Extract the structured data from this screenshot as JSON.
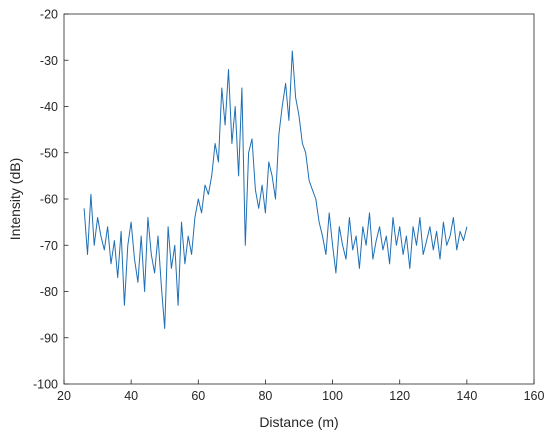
{
  "chart_data": {
    "type": "line",
    "title": "",
    "xlabel": "Distance (m)",
    "ylabel": "Intensity (dB)",
    "xlim": [
      20,
      160
    ],
    "ylim": [
      -100,
      -20
    ],
    "xticks": [
      20,
      40,
      60,
      80,
      100,
      120,
      140,
      160
    ],
    "yticks": [
      -100,
      -90,
      -80,
      -70,
      -60,
      -50,
      -40,
      -30,
      -20
    ],
    "xtick_labels": [
      "20",
      "40",
      "60",
      "80",
      "100",
      "120",
      "140",
      "160"
    ],
    "ytick_labels": [
      "-100",
      "-90",
      "-80",
      "-70",
      "-60",
      "-50",
      "-40",
      "-30",
      "-20"
    ],
    "grid": false,
    "line_color": "#1f6fb4",
    "series": [
      {
        "x": [
          26,
          27,
          28,
          29,
          30,
          31,
          32,
          33,
          34,
          35,
          36,
          37,
          38,
          39,
          40,
          41,
          42,
          43,
          44,
          45,
          46,
          47,
          48,
          49,
          50,
          51,
          52,
          53,
          54,
          55,
          56,
          57,
          58,
          59,
          60,
          61,
          62,
          63,
          64,
          65,
          66,
          67,
          68,
          69,
          70,
          71,
          72,
          73,
          74,
          75,
          76,
          77,
          78,
          79,
          80,
          81,
          82,
          83,
          84,
          85,
          86,
          87,
          88,
          89,
          90,
          91,
          92,
          93,
          94,
          95,
          96,
          97,
          98,
          99,
          100,
          101,
          102,
          103,
          104,
          105,
          106,
          107,
          108,
          109,
          110,
          111,
          112,
          113,
          114,
          115,
          116,
          117,
          118,
          119,
          120,
          121,
          122,
          123,
          124,
          125,
          126,
          127,
          128,
          129,
          130,
          131,
          132,
          133,
          134,
          135,
          136,
          137,
          138,
          139,
          140
        ],
        "y": [
          -62,
          -72,
          -59,
          -70,
          -64,
          -68,
          -71,
          -66,
          -74,
          -69,
          -77,
          -67,
          -83,
          -70,
          -65,
          -73,
          -78,
          -68,
          -80,
          -64,
          -72,
          -76,
          -68,
          -79,
          -88,
          -66,
          -75,
          -70,
          -83,
          -65,
          -74,
          -68,
          -72,
          -64,
          -60,
          -63,
          -57,
          -59,
          -55,
          -48,
          -52,
          -36,
          -44,
          -32,
          -48,
          -40,
          -55,
          -36,
          -70,
          -50,
          -47,
          -58,
          -62,
          -57,
          -63,
          -52,
          -55,
          -60,
          -46,
          -40,
          -35,
          -43,
          -28,
          -38,
          -42,
          -48,
          -50,
          -56,
          -58,
          -60,
          -65,
          -68,
          -72,
          -63,
          -70,
          -76,
          -66,
          -70,
          -73,
          -64,
          -71,
          -68,
          -75,
          -66,
          -70,
          -63,
          -73,
          -69,
          -66,
          -71,
          -68,
          -74,
          -64,
          -70,
          -66,
          -72,
          -68,
          -75,
          -66,
          -70,
          -64,
          -72,
          -69,
          -66,
          -71,
          -67,
          -73,
          -65,
          -70,
          -68,
          -64,
          -71,
          -67,
          -69,
          -66
        ]
      }
    ],
    "annotations": [
      {
        "x": 84,
        "y": -25,
        "label": ""
      },
      {
        "x": 120,
        "y": -93,
        "label": ""
      },
      {
        "x": 77,
        "y": -86,
        "label": ""
      }
    ]
  }
}
